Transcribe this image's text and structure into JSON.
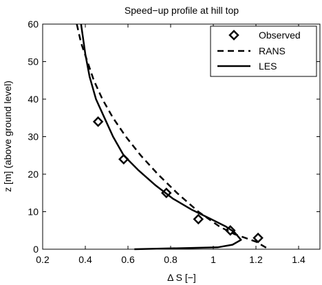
{
  "chart_data": {
    "type": "line",
    "title": "Speed−up profile at hill top",
    "xlabel": "Δ S [−]",
    "ylabel": "z [m] (above ground level)",
    "xlim": [
      0.2,
      1.5
    ],
    "ylim": [
      0,
      60
    ],
    "xticks": [
      "0.2",
      "0.4",
      "0.6",
      "0.8",
      "1",
      "1.2",
      "1.4"
    ],
    "yticks": [
      "0",
      "10",
      "20",
      "30",
      "40",
      "50",
      "60"
    ],
    "grid": false,
    "legend_position": "top-right",
    "series": [
      {
        "name": "Observed",
        "style": "markers",
        "marker": "diamond",
        "x": [
          0.46,
          0.58,
          0.78,
          0.93,
          1.08,
          1.21
        ],
        "y": [
          34,
          24,
          15,
          8,
          5,
          3
        ]
      },
      {
        "name": "RANS",
        "style": "dashed",
        "x": [
          0.36,
          0.38,
          0.41,
          0.44,
          0.48,
          0.53,
          0.59,
          0.66,
          0.74,
          0.83,
          0.93,
          1.03,
          1.1,
          1.15,
          1.2,
          1.26
        ],
        "y": [
          60,
          55,
          50,
          45,
          40,
          35,
          30,
          25,
          20,
          15,
          10,
          6,
          4,
          3,
          2,
          0
        ]
      },
      {
        "name": "LES",
        "style": "solid",
        "x": [
          0.63,
          1.02,
          1.09,
          1.13,
          1.1,
          1.06,
          0.99,
          0.9,
          0.81,
          0.73,
          0.65,
          0.58,
          0.53,
          0.49,
          0.45,
          0.42,
          0.4,
          0.38
        ],
        "y": [
          0,
          0.5,
          1.2,
          2.5,
          4.5,
          6,
          8,
          10.5,
          13.5,
          17,
          21,
          25,
          30,
          35,
          40,
          46,
          52,
          60
        ]
      }
    ]
  }
}
